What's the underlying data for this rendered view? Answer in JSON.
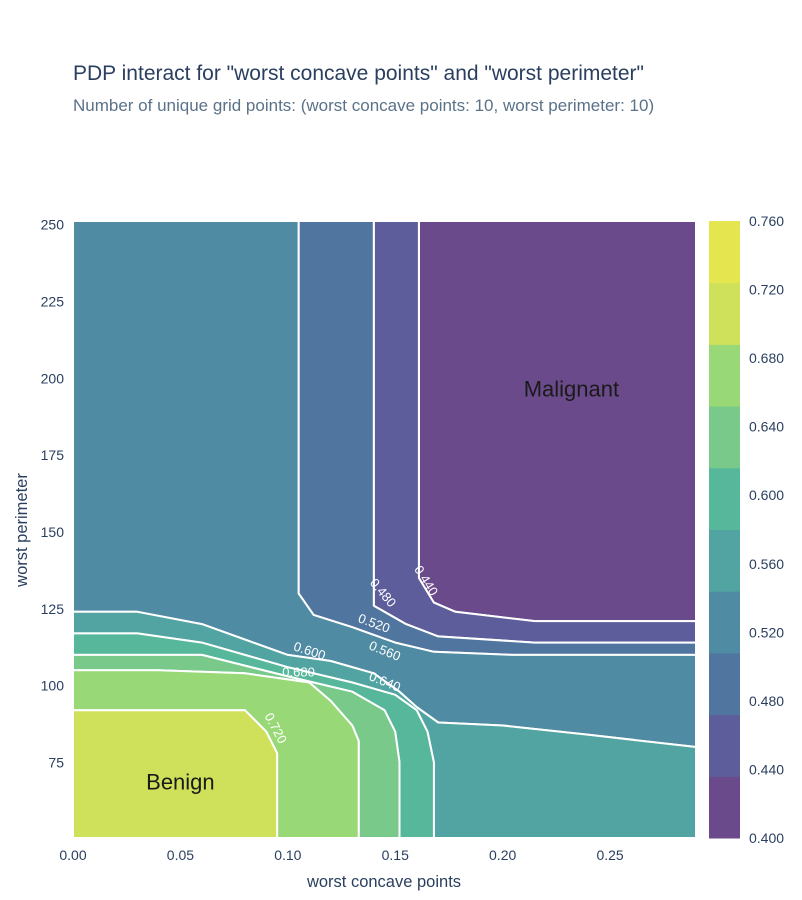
{
  "title": "PDP interact for \"worst concave points\" and \"worst perimeter\"",
  "subtitle": "Number of unique grid points: (worst concave points: 10, worst perimeter: 10)",
  "chart_data": {
    "type": "heatmap",
    "subtype": "contour",
    "xlabel": "worst concave points",
    "ylabel": "worst perimeter",
    "xlim": [
      0,
      0.29
    ],
    "ylim": [
      50.4,
      251.2
    ],
    "x_ticks": [
      "0.00",
      "0.05",
      "0.10",
      "0.15",
      "0.20",
      "0.25"
    ],
    "y_ticks": [
      "75",
      "100",
      "125",
      "150",
      "175",
      "200",
      "225",
      "250"
    ],
    "colorbar": {
      "ticks": [
        "0.400",
        "0.440",
        "0.480",
        "0.520",
        "0.560",
        "0.600",
        "0.640",
        "0.680",
        "0.720",
        "0.760"
      ],
      "range": [
        0.4,
        0.76
      ],
      "colors": [
        "#6a4a8a",
        "#5d5d9b",
        "#5076a0",
        "#4f8ca4",
        "#52a4a2",
        "#57b79b",
        "#78c98a",
        "#99d877",
        "#cfe15a",
        "#e5e64f"
      ]
    },
    "contour_levels": [
      "0.440",
      "0.480",
      "0.520",
      "0.560",
      "0.600",
      "0.640",
      "0.680",
      "0.720"
    ],
    "regions": [
      {
        "label": "0.400-0.440",
        "points": [
          [
            0.161,
            251.2
          ],
          [
            0.29,
            251.2
          ],
          [
            0.29,
            121
          ],
          [
            0.215,
            121
          ],
          [
            0.178,
            124
          ],
          [
            0.168,
            127
          ],
          [
            0.161,
            135
          ]
        ]
      },
      {
        "label": "0.440-0.480",
        "points": [
          [
            0.14,
            251.2
          ],
          [
            0.161,
            251.2
          ],
          [
            0.161,
            135
          ],
          [
            0.168,
            127
          ],
          [
            0.178,
            124
          ],
          [
            0.215,
            121
          ],
          [
            0.29,
            121
          ],
          [
            0.29,
            114
          ],
          [
            0.215,
            114
          ],
          [
            0.17,
            116
          ],
          [
            0.155,
            120
          ],
          [
            0.14,
            126
          ]
        ]
      },
      {
        "label": "0.480-0.520",
        "points": [
          [
            0.105,
            251.2
          ],
          [
            0.14,
            251.2
          ],
          [
            0.14,
            126
          ],
          [
            0.155,
            120
          ],
          [
            0.17,
            116
          ],
          [
            0.215,
            114
          ],
          [
            0.29,
            114
          ],
          [
            0.29,
            110
          ],
          [
            0.205,
            110
          ],
          [
            0.168,
            111
          ],
          [
            0.15,
            114
          ],
          [
            0.13,
            119
          ],
          [
            0.112,
            123
          ],
          [
            0.105,
            130
          ]
        ]
      },
      {
        "label": "0.520-0.560",
        "points": [
          [
            0,
            251.2
          ],
          [
            0.105,
            251.2
          ],
          [
            0.105,
            130
          ],
          [
            0.112,
            123
          ],
          [
            0.13,
            119
          ],
          [
            0.15,
            114
          ],
          [
            0.168,
            111
          ],
          [
            0.205,
            110
          ],
          [
            0.29,
            110
          ],
          [
            0.29,
            80
          ],
          [
            0.24,
            84
          ],
          [
            0.2,
            87
          ],
          [
            0.17,
            88
          ],
          [
            0.16,
            93
          ],
          [
            0.152,
            98
          ],
          [
            0.14,
            104
          ],
          [
            0.12,
            108
          ],
          [
            0.1,
            110
          ],
          [
            0.06,
            120
          ],
          [
            0.03,
            124
          ],
          [
            0,
            124
          ]
        ]
      },
      {
        "label": "0.560-0.600",
        "points": [
          [
            0,
            124
          ],
          [
            0.03,
            124
          ],
          [
            0.06,
            120
          ],
          [
            0.1,
            110
          ],
          [
            0.12,
            108
          ],
          [
            0.14,
            104
          ],
          [
            0.152,
            98
          ],
          [
            0.16,
            93
          ],
          [
            0.17,
            88
          ],
          [
            0.2,
            87
          ],
          [
            0.24,
            84
          ],
          [
            0.29,
            80
          ],
          [
            0.29,
            50.4
          ],
          [
            0.168,
            50.4
          ],
          [
            0.168,
            75
          ],
          [
            0.165,
            85
          ],
          [
            0.16,
            92
          ],
          [
            0.15,
            97
          ],
          [
            0.13,
            101
          ],
          [
            0.1,
            106
          ],
          [
            0.06,
            114
          ],
          [
            0.03,
            117
          ],
          [
            0,
            117
          ]
        ]
      },
      {
        "label": "0.600-0.640",
        "points": [
          [
            0,
            117
          ],
          [
            0.03,
            117
          ],
          [
            0.06,
            114
          ],
          [
            0.1,
            106
          ],
          [
            0.13,
            101
          ],
          [
            0.15,
            97
          ],
          [
            0.16,
            92
          ],
          [
            0.165,
            85
          ],
          [
            0.168,
            75
          ],
          [
            0.168,
            50.4
          ],
          [
            0.152,
            50.4
          ],
          [
            0.152,
            75
          ],
          [
            0.15,
            85
          ],
          [
            0.145,
            92
          ],
          [
            0.13,
            98
          ],
          [
            0.1,
            103
          ],
          [
            0.06,
            110
          ],
          [
            0.03,
            110
          ],
          [
            0,
            110
          ]
        ]
      },
      {
        "label": "0.640-0.680",
        "points": [
          [
            0,
            110
          ],
          [
            0.03,
            110
          ],
          [
            0.06,
            110
          ],
          [
            0.1,
            103
          ],
          [
            0.13,
            98
          ],
          [
            0.145,
            92
          ],
          [
            0.15,
            85
          ],
          [
            0.152,
            75
          ],
          [
            0.152,
            50.4
          ],
          [
            0.133,
            50.4
          ],
          [
            0.133,
            82
          ],
          [
            0.13,
            87
          ],
          [
            0.12,
            95
          ],
          [
            0.11,
            101
          ],
          [
            0.08,
            104
          ],
          [
            0.04,
            105
          ],
          [
            0,
            105
          ]
        ]
      },
      {
        "label": "0.680-0.720",
        "points": [
          [
            0,
            105
          ],
          [
            0.04,
            105
          ],
          [
            0.08,
            104
          ],
          [
            0.11,
            101
          ],
          [
            0.12,
            95
          ],
          [
            0.13,
            87
          ],
          [
            0.133,
            82
          ],
          [
            0.133,
            50.4
          ],
          [
            0.095,
            50.4
          ],
          [
            0.095,
            78
          ],
          [
            0.09,
            85
          ],
          [
            0.08,
            92
          ],
          [
            0.04,
            92
          ],
          [
            0,
            92
          ]
        ]
      },
      {
        "label": "0.720-0.760",
        "points": [
          [
            0,
            92
          ],
          [
            0.04,
            92
          ],
          [
            0.08,
            92
          ],
          [
            0.09,
            85
          ],
          [
            0.095,
            78
          ],
          [
            0.095,
            50.4
          ],
          [
            0,
            50.4
          ]
        ]
      }
    ],
    "contour_label_positions": [
      {
        "text": "0.440",
        "x": 0.164,
        "y": 134,
        "angle": 58
      },
      {
        "text": "0.480",
        "x": 0.144,
        "y": 130,
        "angle": 50
      },
      {
        "text": "0.520",
        "x": 0.14,
        "y": 120,
        "angle": 20
      },
      {
        "text": "0.560",
        "x": 0.145,
        "y": 111,
        "angle": 22
      },
      {
        "text": "0.600",
        "x": 0.11,
        "y": 111,
        "angle": 18
      },
      {
        "text": "0.640",
        "x": 0.145,
        "y": 101,
        "angle": 22
      },
      {
        "text": "0.680",
        "x": 0.105,
        "y": 104,
        "angle": 0
      },
      {
        "text": "0.720",
        "x": 0.094,
        "y": 86,
        "angle": 62
      }
    ],
    "annotations": [
      {
        "text": "Malignant",
        "x": 0.232,
        "y": 196
      },
      {
        "text": "Benign",
        "x": 0.05,
        "y": 68
      }
    ]
  }
}
